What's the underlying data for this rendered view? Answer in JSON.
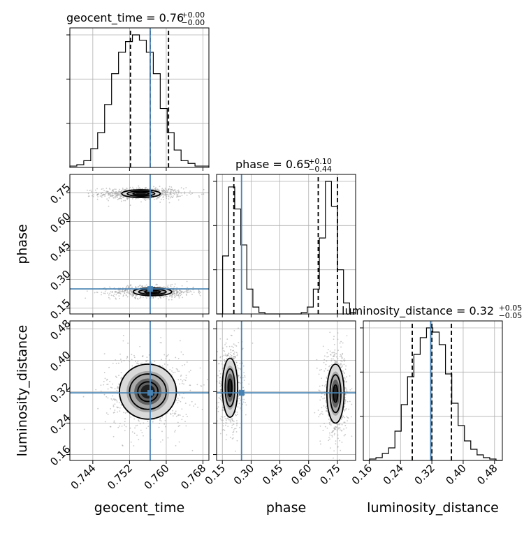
{
  "colors": {
    "truth": "#4682b4",
    "grid": "#b0b0b0",
    "ink": "#000000"
  },
  "chart_data": {
    "type": "corner",
    "parameters": [
      {
        "name": "geocent_time",
        "label": "geocent_time",
        "range": [
          0.739,
          0.7693
        ],
        "ticks": [
          "0.744",
          "0.752",
          "0.760",
          "0.768"
        ],
        "truth": 0.7565,
        "quantiles": [
          0.7522,
          0.7565,
          0.7605
        ],
        "title": {
          "main": "geocent_time = 0.76",
          "sup": "+0.00",
          "sub": "−0.00"
        },
        "histogram": [
          0.01,
          0.02,
          0.05,
          0.14,
          0.26,
          0.47,
          0.7,
          0.86,
          0.94,
          0.99,
          0.95,
          0.86,
          0.7,
          0.44,
          0.26,
          0.13,
          0.05,
          0.03,
          0.01,
          0.01
        ]
      },
      {
        "name": "phase",
        "label": "phase",
        "range": [
          0.12,
          0.845
        ],
        "ticks": [
          "0.15",
          "0.30",
          "0.45",
          "0.60",
          "0.75"
        ],
        "truth": 0.25,
        "quantiles": [
          0.21,
          0.65,
          0.75
        ],
        "title": {
          "main": "phase = 0.65",
          "sup": "+0.10",
          "sub": "−0.44"
        },
        "histogram": [
          0.0,
          0.42,
          0.92,
          0.76,
          0.5,
          0.18,
          0.05,
          0.01,
          0.0,
          0.0,
          0.0,
          0.0,
          0.0,
          0.0,
          0.01,
          0.05,
          0.18,
          0.55,
          0.96,
          0.78,
          0.32,
          0.08,
          0.01
        ]
      },
      {
        "name": "luminosity_distance",
        "label": "luminosity_distance",
        "range": [
          0.145,
          0.5
        ],
        "ticks": [
          "0.16",
          "0.24",
          "0.32",
          "0.40",
          "0.48"
        ],
        "truth": 0.317,
        "quantiles": [
          0.27,
          0.32,
          0.37
        ],
        "title": {
          "main": "luminosity_distance = 0.32",
          "sup": "+0.05",
          "sub": "−0.05"
        },
        "histogram": [
          0.0,
          0.01,
          0.02,
          0.05,
          0.09,
          0.21,
          0.4,
          0.6,
          0.76,
          0.88,
          0.95,
          0.92,
          0.83,
          0.62,
          0.41,
          0.25,
          0.14,
          0.08,
          0.04,
          0.02,
          0.01,
          0.0
        ]
      }
    ],
    "pairs": [
      {
        "x": "geocent_time",
        "y": "phase",
        "modes": [
          {
            "cx": 0.7545,
            "cy": 0.745,
            "sx": 0.0035,
            "sy": 0.012,
            "levels": [
              [
                0.0017,
                0.007
              ],
              [
                0.003,
                0.013
              ],
              [
                0.0042,
                0.02
              ]
            ]
          },
          {
            "cx": 0.757,
            "cy": 0.235,
            "sx": 0.0035,
            "sy": 0.012,
            "levels": [
              [
                0.0017,
                0.007
              ],
              [
                0.003,
                0.013
              ],
              [
                0.0042,
                0.02
              ]
            ]
          }
        ]
      },
      {
        "x": "geocent_time",
        "y": "luminosity_distance",
        "modes": [
          {
            "cx": 0.756,
            "cy": 0.32,
            "sx": 0.0036,
            "sy": 0.04,
            "levels": [
              [
                0.0022,
                0.025
              ],
              [
                0.004,
                0.045
              ],
              [
                0.0062,
                0.07
              ]
            ]
          }
        ]
      },
      {
        "x": "phase",
        "y": "luminosity_distance",
        "modes": [
          {
            "cx": 0.19,
            "cy": 0.33,
            "sx": 0.025,
            "sy": 0.04,
            "levels": [
              [
                0.01,
                0.022
              ],
              [
                0.025,
                0.048
              ],
              [
                0.04,
                0.075
              ]
            ]
          },
          {
            "cx": 0.74,
            "cy": 0.315,
            "sx": 0.025,
            "sy": 0.04,
            "levels": [
              [
                0.012,
                0.022
              ],
              [
                0.028,
                0.048
              ],
              [
                0.045,
                0.075
              ]
            ]
          }
        ]
      }
    ]
  }
}
